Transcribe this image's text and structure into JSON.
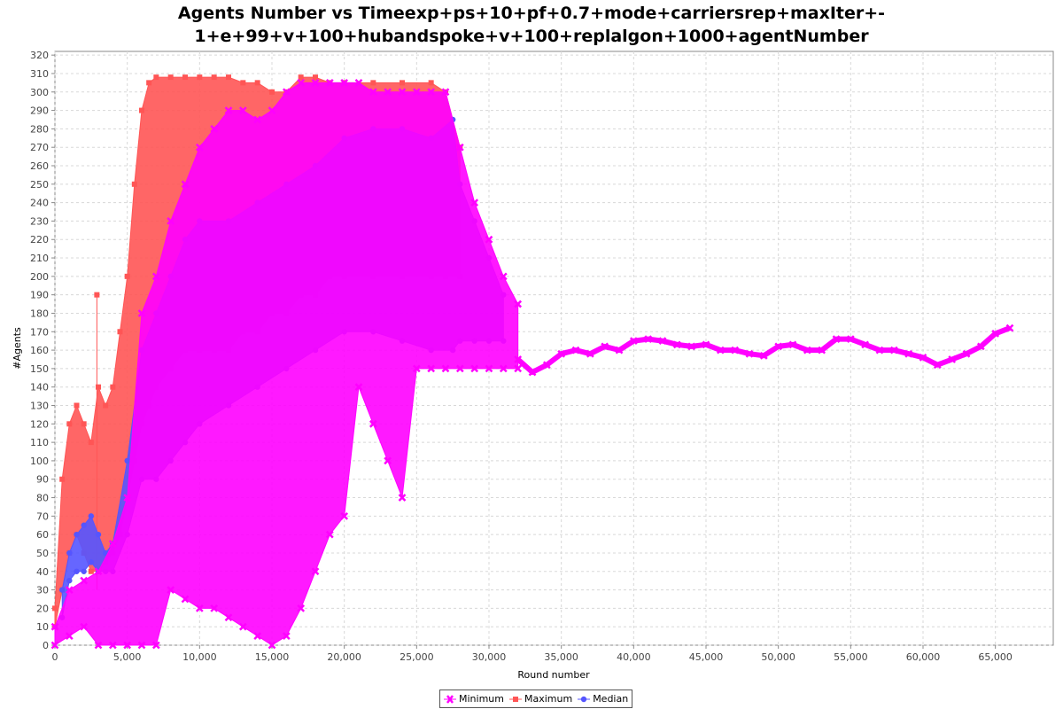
{
  "chart_data": {
    "type": "line",
    "title_line1": "Agents Number vs Timeexp+ps+10+pf+0.7+mode+carriersrep+maxIter+-",
    "title_line2": "1+e+99+v+100+hubandspoke+v+100+replalgon+1000+agentNumber",
    "xlabel": "Round number",
    "ylabel": "#Agents",
    "xlim": [
      0,
      69000
    ],
    "ylim": [
      0,
      322
    ],
    "x_ticks": [
      0,
      5000,
      10000,
      15000,
      20000,
      25000,
      30000,
      35000,
      40000,
      45000,
      50000,
      55000,
      60000,
      65000
    ],
    "x_tick_labels": [
      "0",
      "5,000",
      "10,000",
      "15,000",
      "20,000",
      "25,000",
      "30,000",
      "35,000",
      "40,000",
      "45,000",
      "50,000",
      "55,000",
      "60,000",
      "65,000"
    ],
    "y_ticks": [
      0,
      10,
      20,
      30,
      40,
      50,
      60,
      70,
      80,
      90,
      100,
      110,
      120,
      130,
      140,
      150,
      160,
      170,
      180,
      190,
      200,
      210,
      220,
      230,
      240,
      250,
      260,
      270,
      280,
      290,
      300,
      310,
      320
    ],
    "grid": true,
    "legend_position": "bottom-center",
    "series": [
      {
        "name": "Minimum",
        "color": "#ff00ff",
        "marker": "x",
        "band": [
          [
            0,
            0,
            10
          ],
          [
            1000,
            5,
            30
          ],
          [
            2000,
            10,
            35
          ],
          [
            3000,
            0,
            40
          ],
          [
            4000,
            0,
            55
          ],
          [
            5000,
            0,
            80
          ],
          [
            6000,
            0,
            180
          ],
          [
            7000,
            0,
            200
          ],
          [
            8000,
            30,
            230
          ],
          [
            9000,
            25,
            250
          ],
          [
            10000,
            20,
            270
          ],
          [
            11000,
            20,
            280
          ],
          [
            12000,
            15,
            290
          ],
          [
            13000,
            10,
            290
          ],
          [
            14000,
            5,
            285
          ],
          [
            15000,
            0,
            290
          ],
          [
            16000,
            5,
            300
          ],
          [
            17000,
            20,
            305
          ],
          [
            18000,
            40,
            305
          ],
          [
            19000,
            60,
            305
          ],
          [
            20000,
            70,
            305
          ],
          [
            21000,
            140,
            305
          ],
          [
            22000,
            120,
            300
          ],
          [
            23000,
            100,
            300
          ],
          [
            24000,
            80,
            300
          ],
          [
            25000,
            150,
            300
          ],
          [
            26000,
            150,
            300
          ],
          [
            27000,
            150,
            300
          ],
          [
            28000,
            150,
            270
          ],
          [
            29000,
            150,
            240
          ],
          [
            30000,
            150,
            220
          ],
          [
            31000,
            150,
            200
          ],
          [
            32000,
            150,
            185
          ]
        ],
        "tail": [
          [
            32000,
            155
          ],
          [
            33000,
            148
          ],
          [
            34000,
            152
          ],
          [
            35000,
            158
          ],
          [
            36000,
            160
          ],
          [
            37000,
            158
          ],
          [
            38000,
            162
          ],
          [
            39000,
            160
          ],
          [
            40000,
            165
          ],
          [
            41000,
            166
          ],
          [
            42000,
            165
          ],
          [
            43000,
            163
          ],
          [
            44000,
            162
          ],
          [
            45000,
            163
          ],
          [
            46000,
            160
          ],
          [
            47000,
            160
          ],
          [
            48000,
            158
          ],
          [
            49000,
            157
          ],
          [
            50000,
            162
          ],
          [
            51000,
            163
          ],
          [
            52000,
            160
          ],
          [
            53000,
            160
          ],
          [
            54000,
            166
          ],
          [
            55000,
            166
          ],
          [
            56000,
            163
          ],
          [
            57000,
            160
          ],
          [
            58000,
            160
          ],
          [
            59000,
            158
          ],
          [
            60000,
            156
          ],
          [
            61000,
            152
          ],
          [
            62000,
            155
          ],
          [
            63000,
            158
          ],
          [
            64000,
            162
          ],
          [
            65000,
            169
          ],
          [
            66000,
            172
          ]
        ]
      },
      {
        "name": "Maximum",
        "color": "#ff5555",
        "marker": "square",
        "band": [
          [
            0,
            10,
            20
          ],
          [
            500,
            30,
            90
          ],
          [
            1000,
            50,
            120
          ],
          [
            1500,
            60,
            130
          ],
          [
            2000,
            50,
            120
          ],
          [
            2500,
            40,
            110
          ],
          [
            3000,
            40,
            140
          ],
          [
            3500,
            45,
            130
          ],
          [
            4000,
            50,
            140
          ],
          [
            4500,
            60,
            170
          ],
          [
            5000,
            80,
            200
          ],
          [
            5500,
            100,
            250
          ],
          [
            6000,
            120,
            290
          ],
          [
            6500,
            130,
            305
          ],
          [
            7000,
            140,
            308
          ],
          [
            8000,
            150,
            308
          ],
          [
            9000,
            160,
            308
          ],
          [
            10000,
            160,
            308
          ],
          [
            11000,
            160,
            308
          ],
          [
            12000,
            160,
            308
          ],
          [
            13000,
            170,
            305
          ],
          [
            14000,
            170,
            305
          ],
          [
            15000,
            180,
            300
          ],
          [
            16000,
            180,
            300
          ],
          [
            17000,
            190,
            308
          ],
          [
            18000,
            190,
            308
          ],
          [
            19000,
            200,
            305
          ],
          [
            20000,
            200,
            305
          ],
          [
            22000,
            200,
            305
          ],
          [
            24000,
            200,
            305
          ],
          [
            26000,
            200,
            305
          ],
          [
            27000,
            200,
            300
          ],
          [
            28000,
            200,
            270
          ]
        ],
        "spike": [
          [
            2900,
            190
          ]
        ]
      },
      {
        "name": "Median",
        "color": "#5555ff",
        "marker": "circle",
        "band": [
          [
            500,
            15,
            30
          ],
          [
            1000,
            35,
            50
          ],
          [
            1500,
            40,
            60
          ],
          [
            2000,
            40,
            65
          ],
          [
            2500,
            45,
            70
          ],
          [
            3000,
            40,
            60
          ],
          [
            3500,
            40,
            50
          ],
          [
            4000,
            40,
            55
          ],
          [
            5000,
            60,
            100
          ],
          [
            6000,
            90,
            160
          ],
          [
            7000,
            90,
            180
          ],
          [
            8000,
            100,
            200
          ],
          [
            9000,
            110,
            220
          ],
          [
            10000,
            120,
            230
          ],
          [
            12000,
            130,
            230
          ],
          [
            14000,
            140,
            240
          ],
          [
            16000,
            150,
            250
          ],
          [
            18000,
            160,
            260
          ],
          [
            20000,
            170,
            275
          ],
          [
            22000,
            170,
            280
          ],
          [
            24000,
            165,
            280
          ],
          [
            26000,
            160,
            275
          ],
          [
            27500,
            160,
            285
          ],
          [
            28000,
            165,
            250
          ],
          [
            29000,
            165,
            230
          ],
          [
            30000,
            165,
            210
          ],
          [
            31000,
            165,
            190
          ]
        ]
      }
    ]
  }
}
